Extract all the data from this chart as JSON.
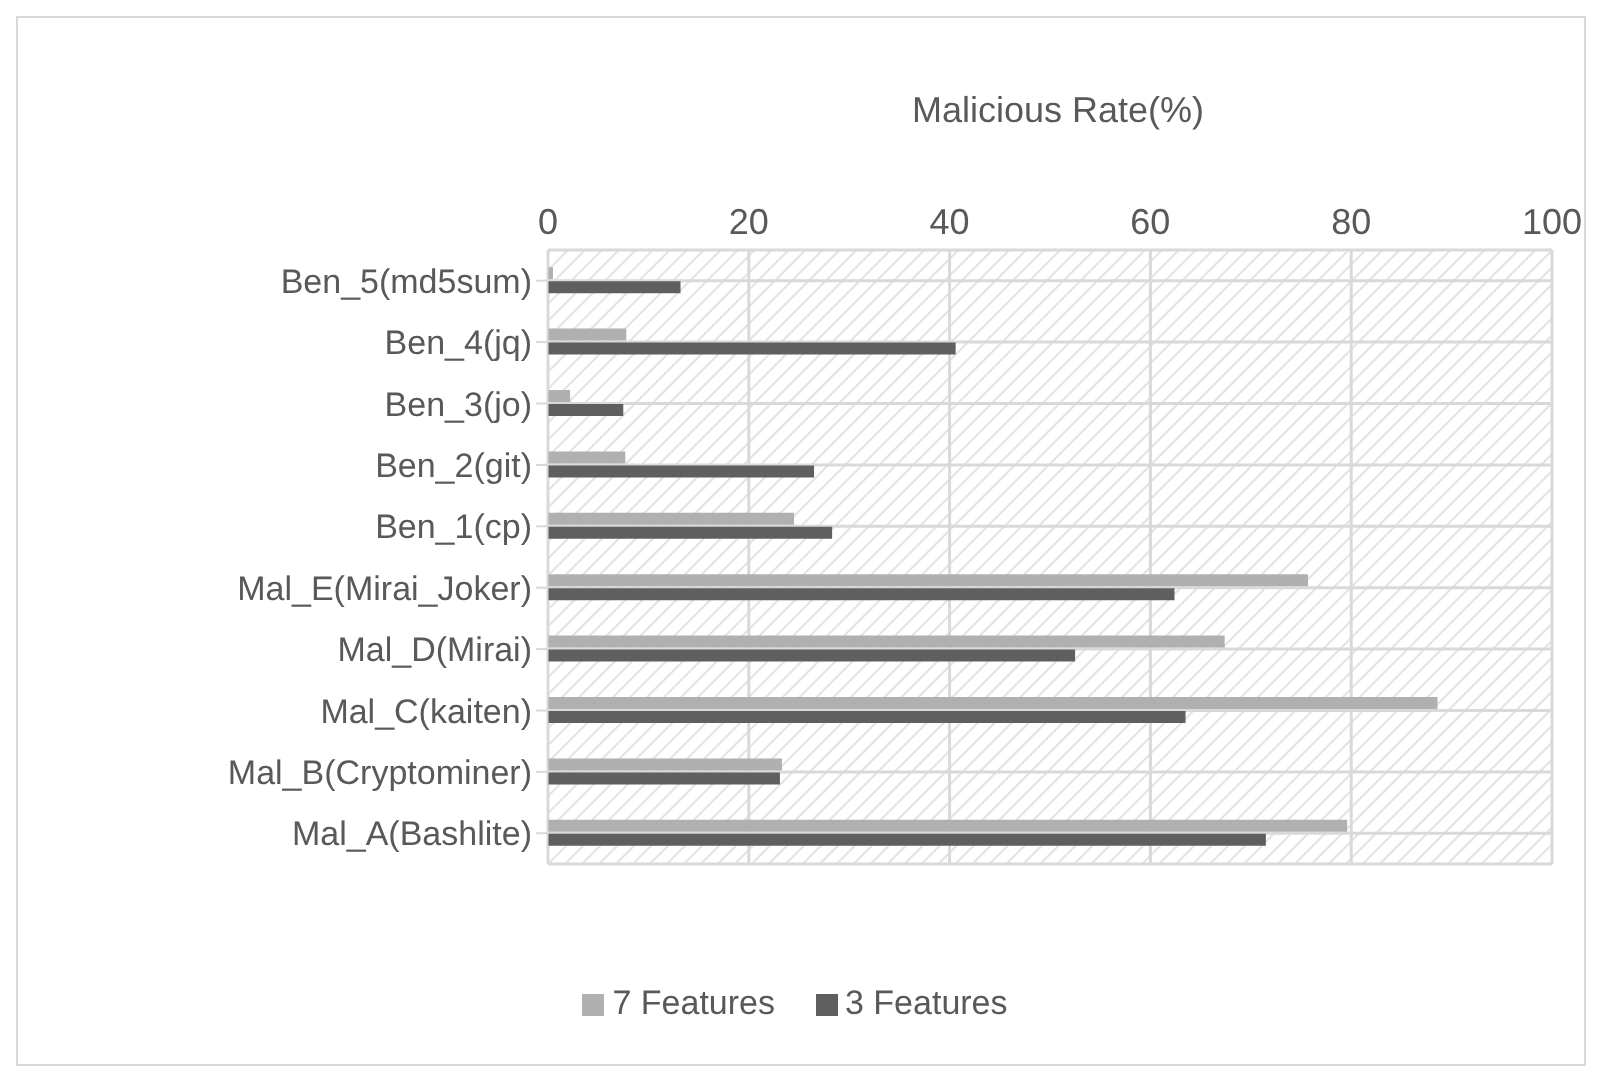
{
  "chart_data": {
    "type": "bar",
    "orientation": "horizontal",
    "title": "Malicious Rate(%)",
    "categories": [
      "Ben_5(md5sum)",
      "Ben_4(jq)",
      "Ben_3(jo)",
      "Ben_2(git)",
      "Ben_1(cp)",
      "Mal_E(Mirai_Joker)",
      "Mal_D(Mirai)",
      "Mal_C(kaiten)",
      "Mal_B(Cryptominer)",
      "Mal_A(Bashlite)"
    ],
    "series": [
      {
        "name": "7 Features",
        "color": "#b0b0b0",
        "values": [
          0.5,
          7.8,
          2.2,
          7.7,
          24.5,
          75.7,
          67.4,
          88.6,
          23.3,
          79.6
        ]
      },
      {
        "name": "3 Features",
        "color": "#5f5f5f",
        "values": [
          13.2,
          40.6,
          7.5,
          26.5,
          28.3,
          62.4,
          52.5,
          63.5,
          23.1,
          71.5
        ]
      }
    ],
    "xlim": [
      0,
      100
    ],
    "xticks": [
      0,
      20,
      40,
      60,
      80,
      100
    ],
    "grid": true,
    "legend": "bottom"
  }
}
